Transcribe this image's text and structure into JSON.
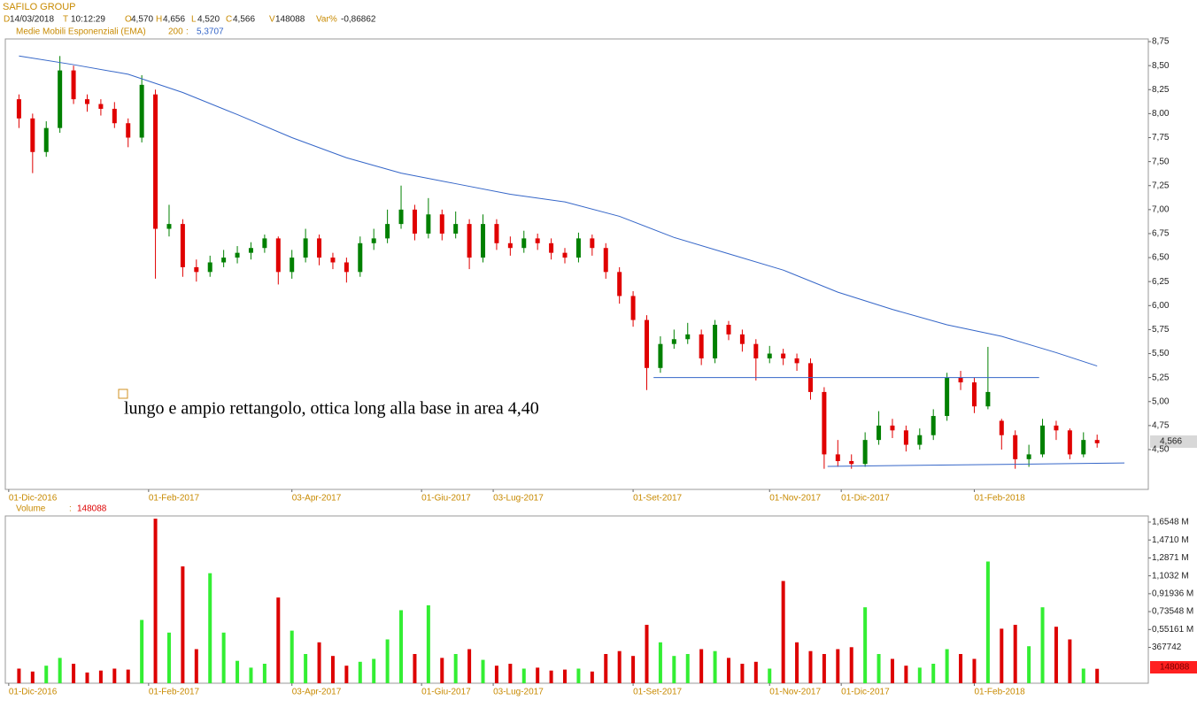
{
  "header": {
    "title": "SAFILO GROUP",
    "fields": [
      {
        "key": "D",
        "value": "14/03/2018"
      },
      {
        "key": "T",
        "value": "10:12:29"
      },
      {
        "key": "O",
        "value": "4,570"
      },
      {
        "key": "H",
        "value": "4,656"
      },
      {
        "key": "L",
        "value": "4,520"
      },
      {
        "key": "C",
        "value": "4,566"
      },
      {
        "key": "V",
        "value": "148088"
      },
      {
        "key": "Var%",
        "value": "-0,86862"
      }
    ],
    "indicator": {
      "name": "Medie Mobili Esponenziali (EMA)",
      "period": 200,
      "separator": ":",
      "value": "5,3707"
    }
  },
  "chart_data": [
    {
      "type": "candlestick",
      "x": [
        3,
        7,
        11,
        15,
        19,
        23,
        27,
        31,
        35,
        39,
        43,
        47,
        51,
        55,
        59,
        63,
        67,
        71,
        75,
        79,
        83,
        87,
        91,
        95,
        99,
        103,
        107,
        111,
        115,
        119,
        123,
        127,
        131,
        135,
        139,
        143,
        147,
        151,
        155,
        159,
        163,
        167,
        171,
        175,
        179,
        183,
        187,
        191,
        195,
        199,
        203,
        207,
        211,
        215,
        219,
        223,
        227,
        231,
        235,
        239,
        243,
        247,
        251,
        255,
        259,
        263,
        267,
        271,
        275,
        279,
        283,
        287,
        291,
        295,
        299,
        303,
        307,
        311,
        315,
        319
      ],
      "open": [
        8.15,
        7.95,
        7.6,
        7.85,
        8.45,
        8.15,
        8.1,
        8.05,
        7.9,
        7.75,
        8.2,
        6.8,
        6.85,
        6.4,
        6.35,
        6.45,
        6.5,
        6.55,
        6.6,
        6.7,
        6.35,
        6.5,
        6.7,
        6.5,
        6.45,
        6.35,
        6.65,
        6.7,
        6.85,
        7.0,
        6.75,
        6.95,
        6.75,
        6.85,
        6.5,
        6.85,
        6.65,
        6.6,
        6.7,
        6.65,
        6.55,
        6.5,
        6.7,
        6.6,
        6.35,
        6.1,
        5.85,
        5.35,
        5.6,
        5.65,
        5.7,
        5.45,
        5.8,
        5.7,
        5.6,
        5.45,
        5.5,
        5.45,
        5.4,
        5.1,
        4.45,
        4.38,
        4.35,
        4.6,
        4.75,
        4.7,
        4.55,
        4.65,
        4.85,
        5.25,
        5.2,
        4.95,
        4.8,
        4.65,
        4.4,
        4.45,
        4.75,
        4.7,
        4.45,
        4.6
      ],
      "high": [
        8.2,
        8.0,
        7.92,
        8.6,
        8.5,
        8.2,
        8.15,
        8.12,
        7.95,
        8.4,
        8.25,
        7.05,
        6.9,
        6.48,
        6.52,
        6.58,
        6.62,
        6.66,
        6.74,
        6.72,
        6.58,
        6.8,
        6.74,
        6.55,
        6.5,
        6.72,
        6.8,
        7.0,
        7.25,
        7.05,
        7.12,
        7.0,
        6.98,
        6.9,
        6.95,
        6.9,
        6.72,
        6.78,
        6.75,
        6.7,
        6.6,
        6.76,
        6.74,
        6.65,
        6.4,
        6.15,
        5.9,
        5.68,
        5.75,
        5.82,
        5.75,
        5.85,
        5.84,
        5.75,
        5.65,
        5.58,
        5.55,
        5.5,
        5.45,
        5.15,
        4.6,
        4.45,
        4.68,
        4.9,
        4.82,
        4.75,
        4.72,
        4.92,
        5.3,
        5.32,
        5.25,
        5.57,
        4.82,
        4.7,
        4.55,
        4.82,
        4.8,
        4.72,
        4.68,
        4.656
      ],
      "low": [
        7.85,
        7.38,
        7.55,
        7.8,
        8.1,
        8.02,
        7.98,
        7.85,
        7.65,
        7.7,
        6.28,
        6.72,
        6.3,
        6.25,
        6.3,
        6.4,
        6.44,
        6.48,
        6.55,
        6.22,
        6.28,
        6.45,
        6.42,
        6.38,
        6.24,
        6.3,
        6.58,
        6.65,
        6.8,
        6.68,
        6.7,
        6.68,
        6.7,
        6.38,
        6.45,
        6.58,
        6.52,
        6.55,
        6.58,
        6.48,
        6.44,
        6.45,
        6.52,
        6.28,
        6.02,
        5.78,
        5.12,
        5.3,
        5.55,
        5.6,
        5.38,
        5.4,
        5.64,
        5.52,
        5.22,
        5.4,
        5.38,
        5.32,
        5.02,
        4.3,
        4.32,
        4.3,
        4.32,
        4.55,
        4.62,
        4.48,
        4.5,
        4.6,
        4.8,
        5.12,
        4.88,
        4.92,
        4.5,
        4.3,
        4.32,
        4.42,
        4.6,
        4.4,
        4.42,
        4.52
      ],
      "close": [
        7.95,
        7.6,
        7.85,
        8.45,
        8.15,
        8.1,
        8.05,
        7.9,
        7.75,
        8.3,
        6.8,
        6.85,
        6.4,
        6.35,
        6.45,
        6.5,
        6.55,
        6.6,
        6.7,
        6.35,
        6.5,
        6.7,
        6.5,
        6.45,
        6.35,
        6.65,
        6.7,
        6.85,
        7.0,
        6.75,
        6.95,
        6.75,
        6.85,
        6.5,
        6.85,
        6.65,
        6.6,
        6.7,
        6.65,
        6.55,
        6.5,
        6.7,
        6.6,
        6.35,
        6.1,
        5.85,
        5.35,
        5.6,
        5.65,
        5.7,
        5.45,
        5.8,
        5.7,
        5.6,
        5.45,
        5.5,
        5.45,
        5.4,
        5.1,
        4.45,
        4.38,
        4.35,
        4.6,
        4.75,
        4.7,
        4.55,
        4.65,
        4.85,
        5.25,
        5.2,
        4.95,
        5.1,
        4.65,
        4.4,
        4.45,
        4.75,
        4.7,
        4.45,
        4.6,
        4.566
      ],
      "up_color": "#008000",
      "down_color": "#e00000",
      "ema": {
        "color": "#3566c8",
        "x": [
          3,
          19,
          35,
          51,
          67,
          83,
          99,
          115,
          131,
          147,
          163,
          179,
          195,
          211,
          227,
          243,
          259,
          275,
          291,
          307,
          319
        ],
        "values": [
          8.6,
          8.51,
          8.41,
          8.22,
          7.99,
          7.75,
          7.54,
          7.38,
          7.27,
          7.16,
          7.08,
          6.93,
          6.71,
          6.54,
          6.37,
          6.14,
          5.96,
          5.8,
          5.68,
          5.51,
          5.3707
        ]
      },
      "lines": [
        {
          "color": "#3566c8",
          "x": [
            189,
            302
          ],
          "y": [
            5.25,
            5.25
          ]
        },
        {
          "color": "#3566c8",
          "x": [
            240,
            327
          ],
          "y": [
            4.325,
            4.36
          ]
        }
      ],
      "annotation": "lungo e ampio rettangolo, ottica long alla base in area 4,40",
      "last_label": "4,566",
      "xlim": [
        -1,
        334
      ],
      "xticks": [
        {
          "value": 0,
          "label": "01-Dic-2016"
        },
        {
          "value": 41,
          "label": "01-Feb-2017"
        },
        {
          "value": 83,
          "label": "03-Apr-2017"
        },
        {
          "value": 121,
          "label": "01-Giu-2017"
        },
        {
          "value": 142,
          "label": "03-Lug-2017"
        },
        {
          "value": 183,
          "label": "01-Set-2017"
        },
        {
          "value": 223,
          "label": "01-Nov-2017"
        },
        {
          "value": 244,
          "label": "01-Dic-2017"
        },
        {
          "value": 283,
          "label": "01-Feb-2018"
        }
      ],
      "ylim": [
        4.085,
        8.778
      ],
      "yticks": [
        {
          "value": 4.5,
          "label": "4,50"
        },
        {
          "value": 4.75,
          "label": "4,75"
        },
        {
          "value": 5,
          "label": "5,00"
        },
        {
          "value": 5.25,
          "label": "5,25"
        },
        {
          "value": 5.5,
          "label": "5,50"
        },
        {
          "value": 5.75,
          "label": "5,75"
        },
        {
          "value": 6,
          "label": "6,00"
        },
        {
          "value": 6.25,
          "label": "6,25"
        },
        {
          "value": 6.5,
          "label": "6,50"
        },
        {
          "value": 6.75,
          "label": "6,75"
        },
        {
          "value": 7,
          "label": "7,00"
        },
        {
          "value": 7.25,
          "label": "7,25"
        },
        {
          "value": 7.5,
          "label": "7,50"
        },
        {
          "value": 7.75,
          "label": "7,75"
        },
        {
          "value": 8,
          "label": "8,00"
        },
        {
          "value": 8.25,
          "label": "8,25"
        },
        {
          "value": 8.5,
          "label": "8,50"
        },
        {
          "value": 8.75,
          "label": "8,75"
        }
      ]
    },
    {
      "type": "bar",
      "title": "Volume",
      "separator": ":",
      "last_label": "148088",
      "x": [
        3,
        7,
        11,
        15,
        19,
        23,
        27,
        31,
        35,
        39,
        43,
        47,
        51,
        55,
        59,
        63,
        67,
        71,
        75,
        79,
        83,
        87,
        91,
        95,
        99,
        103,
        107,
        111,
        115,
        119,
        123,
        127,
        131,
        135,
        139,
        143,
        147,
        151,
        155,
        159,
        163,
        167,
        171,
        175,
        179,
        183,
        187,
        191,
        195,
        199,
        203,
        207,
        211,
        215,
        219,
        223,
        227,
        231,
        235,
        239,
        243,
        247,
        251,
        255,
        259,
        263,
        267,
        271,
        275,
        279,
        283,
        287,
        291,
        295,
        299,
        303,
        307,
        311,
        315,
        319
      ],
      "values": [
        150000,
        120000,
        180000,
        260000,
        200000,
        110000,
        130000,
        150000,
        140000,
        650000,
        1690000,
        520000,
        1200000,
        350000,
        1130000,
        520000,
        230000,
        160000,
        200000,
        880000,
        540000,
        300000,
        420000,
        280000,
        180000,
        220000,
        250000,
        450000,
        750000,
        300000,
        800000,
        260000,
        300000,
        350000,
        240000,
        180000,
        200000,
        150000,
        160000,
        130000,
        140000,
        150000,
        120000,
        300000,
        330000,
        280000,
        600000,
        420000,
        280000,
        300000,
        350000,
        330000,
        260000,
        200000,
        220000,
        150000,
        1050000,
        420000,
        330000,
        300000,
        350000,
        370000,
        780000,
        300000,
        250000,
        180000,
        160000,
        200000,
        350000,
        300000,
        250000,
        1250000,
        560000,
        600000,
        380000,
        780000,
        580000,
        450000,
        150000,
        148088
      ],
      "up_color": "#33ee33",
      "down_color": "#dd0000",
      "ylim": [
        0,
        1718000
      ],
      "yticks": [
        {
          "value": 367742,
          "label": "367742"
        },
        {
          "value": 551613,
          "label": "0,55161 M"
        },
        {
          "value": 735484,
          "label": "0,73548 M"
        },
        {
          "value": 919355,
          "label": "0,91936 M"
        },
        {
          "value": 1103226,
          "label": "1,1032 M"
        },
        {
          "value": 1287097,
          "label": "1,2871 M"
        },
        {
          "value": 1470968,
          "label": "1,4710 M"
        },
        {
          "value": 1654839,
          "label": "1,6548 M"
        }
      ]
    }
  ]
}
